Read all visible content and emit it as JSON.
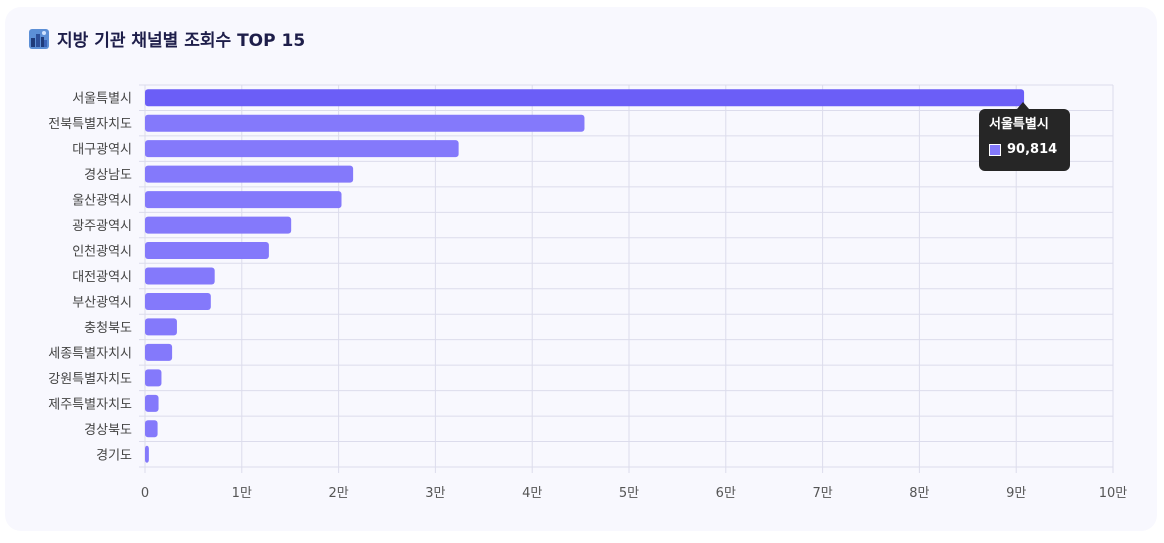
{
  "header": {
    "title": "지방 기관 채널별 조회수 TOP 15",
    "icon": "city-skyline-icon"
  },
  "colors": {
    "bar": "#8479fb",
    "bar_highlight": "#6b5ef7",
    "grid": "#dcdcec",
    "axis_text": "#555555",
    "tooltip_bg": "#262626"
  },
  "tooltip": {
    "title": "서울특별시",
    "value_label": "90,814"
  },
  "chart_data": {
    "type": "bar",
    "orientation": "horizontal",
    "title": "지방 기관 채널별 조회수 TOP 15",
    "categories": [
      "서울특별시",
      "전북특별자치도",
      "대구광역시",
      "경상남도",
      "울산광역시",
      "광주광역시",
      "인천광역시",
      "대전광역시",
      "부산광역시",
      "충청북도",
      "세종특별자치시",
      "강원특별자치도",
      "제주특별자치도",
      "경상북도",
      "경기도"
    ],
    "values": [
      90814,
      45400,
      32400,
      21500,
      20300,
      15100,
      12800,
      7200,
      6800,
      3300,
      2800,
      1700,
      1400,
      1300,
      400
    ],
    "xlim": [
      0,
      100000
    ],
    "x_ticks": [
      0,
      10000,
      20000,
      30000,
      40000,
      50000,
      60000,
      70000,
      80000,
      90000,
      100000
    ],
    "x_tick_labels": [
      "0",
      "1만",
      "2만",
      "3만",
      "4만",
      "5만",
      "6만",
      "7만",
      "8만",
      "9만",
      "10만"
    ],
    "grid": true,
    "highlighted_category": "서울특별시"
  }
}
